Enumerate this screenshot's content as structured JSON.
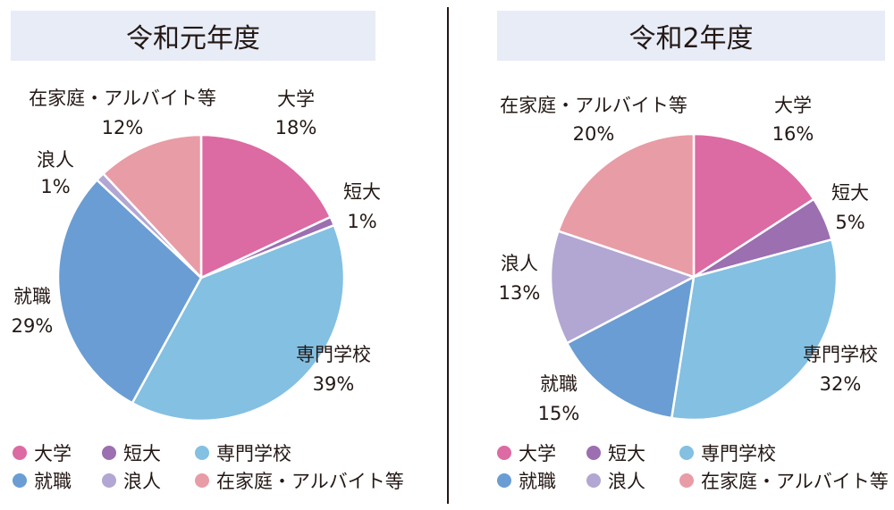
{
  "chart_data": [
    {
      "type": "pie",
      "title": "令和元年度",
      "categories": [
        "大学",
        "短大",
        "専門学校",
        "就職",
        "浪人",
        "在家庭・アルバイト等"
      ],
      "values": [
        18,
        1,
        39,
        29,
        1,
        12
      ],
      "labels": [
        "18%",
        "1%",
        "39%",
        "29%",
        "1%",
        "12%"
      ],
      "colors": [
        "#dc6aa3",
        "#9b6fb0",
        "#83c0e2",
        "#6a9dd3",
        "#b2a6d3",
        "#e89ca6"
      ]
    },
    {
      "type": "pie",
      "title": "令和2年度",
      "categories": [
        "大学",
        "短大",
        "専門学校",
        "就職",
        "浪人",
        "在家庭・アルバイト等"
      ],
      "values": [
        16,
        5,
        32,
        15,
        13,
        20
      ],
      "labels": [
        "16%",
        "5%",
        "32%",
        "15%",
        "13%",
        "20%"
      ],
      "colors": [
        "#dc6aa3",
        "#9b6fb0",
        "#83c0e2",
        "#6a9dd3",
        "#b2a6d3",
        "#e89ca6"
      ]
    }
  ],
  "legend": {
    "items": [
      "大学",
      "短大",
      "専門学校",
      "就職",
      "浪人",
      "在家庭・アルバイト等"
    ],
    "colors": [
      "#dc6aa3",
      "#9b6fb0",
      "#83c0e2",
      "#6a9dd3",
      "#b2a6d3",
      "#e89ca6"
    ]
  }
}
